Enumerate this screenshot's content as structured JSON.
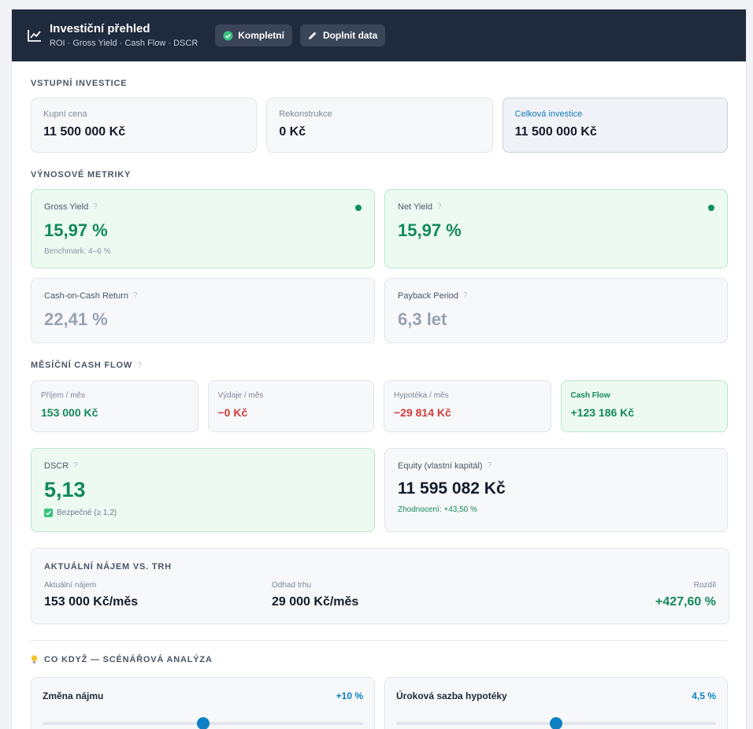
{
  "header": {
    "title": "Investiční přehled",
    "subtitle": "ROI · Gross Yield · Cash Flow · DSCR",
    "status_label": "Kompletní",
    "edit_label": "Doplnit data"
  },
  "inputs": {
    "section_title": "VSTUPNÍ INVESTICE",
    "purchase": {
      "label": "Kupní cena",
      "value": "11 500 000 Kč"
    },
    "renovation": {
      "label": "Rekonstrukce",
      "value": "0 Kč"
    },
    "total": {
      "label": "Celková investice",
      "value": "11 500 000 Kč"
    }
  },
  "yields": {
    "section_title": "VÝNOSOVÉ METRIKY",
    "gross": {
      "label": "Gross Yield",
      "value": "15,97 %",
      "benchmark": "Benchmark: 4–6 %"
    },
    "net": {
      "label": "Net Yield",
      "value": "15,97 %"
    },
    "coc": {
      "label": "Cash-on-Cash Return",
      "value": "22,41 %"
    },
    "payback": {
      "label": "Payback Period",
      "value": "6,3 let"
    }
  },
  "cashflow": {
    "section_title": "MĚSÍČNÍ CASH FLOW",
    "income": {
      "label": "Příjem / měs",
      "value": "153 000 Kč"
    },
    "expenses": {
      "label": "Výdaje / měs",
      "value": "−0 Kč"
    },
    "mortgage": {
      "label": "Hypotéka / měs",
      "value": "−29 814 Kč"
    },
    "total": {
      "label": "Cash Flow",
      "value": "+123 186 Kč"
    }
  },
  "dscr": {
    "label": "DSCR",
    "value": "5,13",
    "note": "Bezpečné (≥ 1,2)"
  },
  "equity": {
    "label": "Equity (vlastní kapitál)",
    "value": "11 595 082 Kč",
    "note": "Zhodnocení: +43,50 %"
  },
  "rent_vs_market": {
    "title": "AKTUÁLNÍ NÁJEM VS. TRH",
    "current_label": "Aktuální nájem",
    "current_value": "153 000 Kč/měs",
    "market_label": "Odhad trhu",
    "market_value": "29 000 Kč/měs",
    "diff_label": "Rozdíl",
    "diff_value": "+427,60 %"
  },
  "scenario": {
    "title": "CO KDYŽ — SCÉNÁŘOVÁ ANALÝZA",
    "rent": {
      "label": "Změna nájmu",
      "value": "+10 %",
      "position": 0.5
    },
    "rate": {
      "label": "Úroková sazba hypotéky",
      "value": "4,5 %",
      "position": 0.5
    }
  },
  "colors": {
    "header_bg": "#1f2a3c",
    "green": "#13895a",
    "red": "#d33b3b",
    "accent_blue": "#0d7fc2"
  }
}
